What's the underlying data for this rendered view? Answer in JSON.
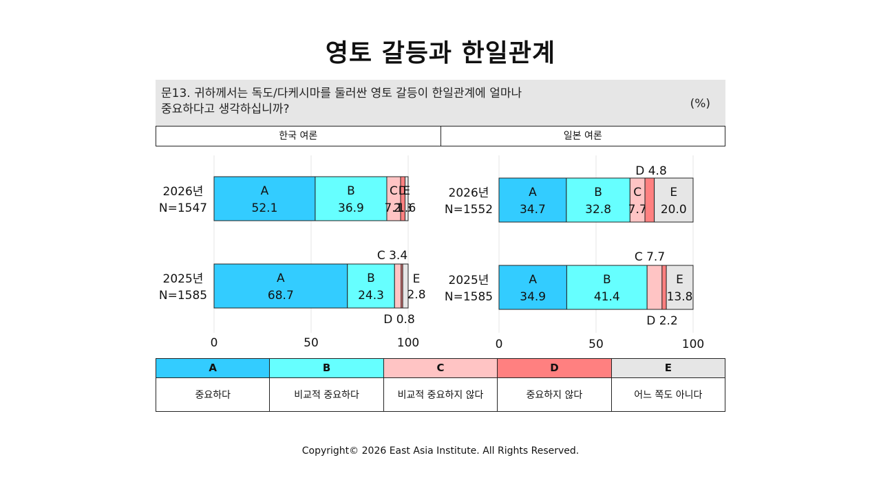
{
  "title": "영토 갈등과 한일관계",
  "question": {
    "line1": "문13. 귀하께서는 독도/다케시마를 둘러싼 영토 갈등이 한일관계에 얼마나",
    "line2": "중요하다고 생각하십니까?",
    "unit": "(%)"
  },
  "headers": {
    "korea": "한국 여론",
    "japan": "일본 여론"
  },
  "legend": [
    {
      "key": "A",
      "label": "중요하다",
      "color": "#33ccff"
    },
    {
      "key": "B",
      "label": "비교적 중요하다",
      "color": "#66ffff"
    },
    {
      "key": "C",
      "label": "비교적 중요하지 않다",
      "color": "#ffc4c4"
    },
    {
      "key": "D",
      "label": "중요하지 않다",
      "color": "#ff8080"
    },
    {
      "key": "E",
      "label": "어느 쪽도 아니다",
      "color": "#e6e6e6"
    }
  ],
  "chart_data": [
    {
      "type": "bar",
      "stacked": true,
      "orientation": "horizontal",
      "panel": "한국 여론",
      "categories": [
        "2026년\nN=1547",
        "2025년\nN=1585"
      ],
      "series": [
        {
          "name": "A",
          "values": [
            52.1,
            68.7
          ]
        },
        {
          "name": "B",
          "values": [
            36.9,
            24.3
          ]
        },
        {
          "name": "C",
          "values": [
            7.1,
            3.4
          ]
        },
        {
          "name": "D",
          "values": [
            2.3,
            0.8
          ]
        },
        {
          "name": "E",
          "values": [
            1.6,
            2.8
          ]
        }
      ],
      "xlim": [
        0,
        100
      ],
      "xticks": [
        0,
        50,
        100
      ],
      "grid": true
    },
    {
      "type": "bar",
      "stacked": true,
      "orientation": "horizontal",
      "panel": "일본 여론",
      "categories": [
        "2026년\nN=1552",
        "2025년\nN=1585"
      ],
      "series": [
        {
          "name": "A",
          "values": [
            34.7,
            34.9
          ]
        },
        {
          "name": "B",
          "values": [
            32.8,
            41.4
          ]
        },
        {
          "name": "C",
          "values": [
            7.7,
            7.7
          ]
        },
        {
          "name": "D",
          "values": [
            4.8,
            2.2
          ]
        },
        {
          "name": "E",
          "values": [
            20.0,
            13.8
          ]
        }
      ],
      "xlim": [
        0,
        100
      ],
      "xticks": [
        0,
        50,
        100
      ],
      "grid": true
    }
  ],
  "copyright": "Copyright© 2026 East Asia Institute. All Rights Reserved."
}
